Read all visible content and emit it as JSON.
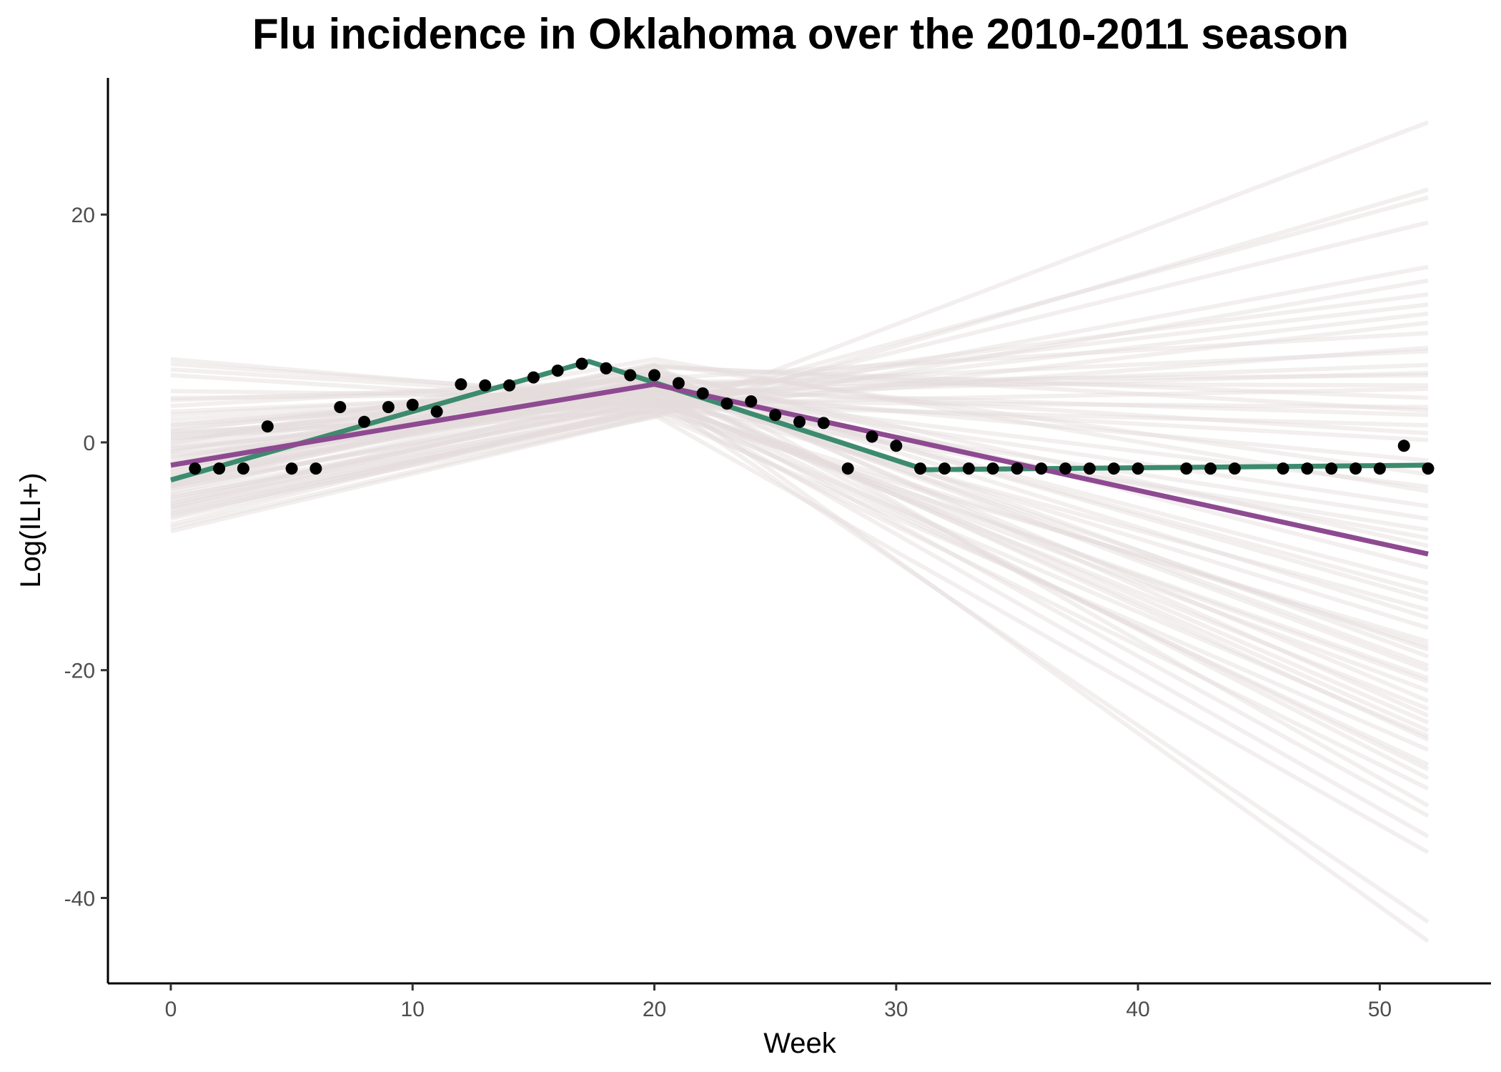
{
  "chart_data": {
    "type": "line",
    "title": "Flu incidence in Oklahoma over the 2010-2011 season",
    "xlabel": "Week",
    "ylabel": "Log(ILI+)",
    "xlim": [
      -2.6,
      54.6
    ],
    "ylim": [
      -47.5,
      32
    ],
    "x_ticks": [
      0,
      10,
      20,
      30,
      40,
      50
    ],
    "y_ticks": [
      -40,
      -20,
      0,
      20
    ],
    "grid": false,
    "legend": "none",
    "colors": {
      "observed_points": "#000000",
      "fit_green": "#3d8b6e",
      "fit_purple": "#8e4a91",
      "posterior_samples": "#e4dcdc"
    },
    "observed": {
      "x": [
        1,
        2,
        3,
        4,
        5,
        6,
        7,
        8,
        9,
        10,
        11,
        12,
        13,
        14,
        15,
        16,
        17,
        18,
        19,
        20,
        21,
        22,
        23,
        24,
        25,
        26,
        27,
        28,
        29,
        30,
        31,
        32,
        33,
        34,
        35,
        36,
        37,
        38,
        39,
        40,
        42,
        43,
        44,
        46,
        47,
        48,
        49,
        50,
        51,
        52
      ],
      "y": [
        -2.3,
        -2.3,
        -2.3,
        1.4,
        -2.3,
        -2.3,
        3.1,
        1.8,
        3.1,
        3.3,
        2.7,
        5.1,
        5.0,
        5.0,
        5.7,
        6.3,
        6.9,
        6.5,
        5.9,
        5.9,
        5.2,
        4.3,
        3.4,
        3.6,
        2.4,
        1.8,
        1.7,
        -2.3,
        0.5,
        -0.3,
        -2.3,
        -2.3,
        -2.3,
        -2.3,
        -2.3,
        -2.3,
        -2.3,
        -2.3,
        -2.3,
        -2.3,
        -2.3,
        -2.3,
        -2.3,
        -2.3,
        -2.3,
        -2.3,
        -2.3,
        -2.3,
        -0.3,
        -2.3
      ]
    },
    "series": [
      {
        "x": [
          0,
          17.3,
          31.2,
          52
        ],
        "y": [
          -3.3,
          7.1,
          -2.4,
          -2.0
        ]
      },
      {
        "x": [
          0,
          20,
          52
        ],
        "y": [
          -2.0,
          5.1,
          -9.8
        ]
      }
    ],
    "posterior_samples": [
      {
        "y": [
          3.7,
          5.3,
          5.9
        ]
      },
      {
        "y": [
          0.3,
          3.6,
          -21.8
        ]
      },
      {
        "y": [
          -0.1,
          7.3,
          -4.3
        ]
      },
      {
        "y": [
          -5.4,
          4.7,
          -25.3
        ]
      },
      {
        "y": [
          7.3,
          3.6,
          3.1
        ]
      },
      {
        "y": [
          -4.8,
          2.8,
          -17.5
        ]
      },
      {
        "y": [
          -2.1,
          4.2,
          6.1
        ]
      },
      {
        "y": [
          -7.2,
          3.3,
          -25.8
        ]
      },
      {
        "y": [
          1.2,
          4.9,
          8.0
        ]
      },
      {
        "y": [
          -3.0,
          4.6,
          2.4
        ]
      },
      {
        "y": [
          -6.3,
          2.2,
          22.2
        ]
      },
      {
        "y": [
          -1.5,
          6.8,
          -31.9
        ]
      },
      {
        "y": [
          3.2,
          5.6,
          -20.0
        ]
      },
      {
        "y": [
          -5.7,
          4.3,
          13.0
        ]
      },
      {
        "y": [
          -0.6,
          3.9,
          -23.4
        ]
      },
      {
        "y": [
          -3.5,
          5.0,
          0.8
        ]
      },
      {
        "y": [
          6.4,
          3.8,
          -6.7
        ]
      },
      {
        "y": [
          -4.1,
          3.9,
          -42.1
        ]
      },
      {
        "y": [
          0.9,
          2.7,
          10.5
        ]
      },
      {
        "y": [
          -2.6,
          5.5,
          -13.2
        ]
      },
      {
        "y": [
          -7.8,
          2.3,
          28.1
        ]
      },
      {
        "y": [
          -0.3,
          6.1,
          -18.8
        ]
      },
      {
        "y": [
          4.5,
          4.0,
          -34.6
        ]
      },
      {
        "y": [
          -3.8,
          3.4,
          4.7
        ]
      },
      {
        "y": [
          -5.1,
          3.7,
          -28.3
        ]
      },
      {
        "y": [
          2.0,
          4.4,
          -3.9
        ]
      },
      {
        "y": [
          -1.9,
          5.8,
          -15.4
        ]
      },
      {
        "y": [
          -6.7,
          2.9,
          15.4
        ]
      },
      {
        "y": [
          0.6,
          4.8,
          -24.6
        ]
      },
      {
        "y": [
          -3.2,
          6.4,
          -11.0
        ]
      },
      {
        "y": [
          5.9,
          3.3,
          1.5
        ]
      },
      {
        "y": [
          -4.4,
          4.9,
          -43.8
        ]
      },
      {
        "y": [
          -1.1,
          3.2,
          8.3
        ]
      },
      {
        "y": [
          -2.9,
          5.3,
          -29.5
        ]
      },
      {
        "y": [
          -6.0,
          3.0,
          21.5
        ]
      },
      {
        "y": [
          1.6,
          4.1,
          -8.4
        ]
      },
      {
        "y": [
          -3.6,
          5.7,
          -19.6
        ]
      },
      {
        "y": [
          -0.8,
          6.6,
          3.9
        ]
      },
      {
        "y": [
          -5.3,
          2.6,
          -27.0
        ]
      },
      {
        "y": [
          2.7,
          4.5,
          -5.6
        ]
      },
      {
        "y": [
          -2.3,
          4.7,
          -16.3
        ]
      },
      {
        "y": [
          -4.6,
          3.5,
          11.3
        ]
      },
      {
        "y": [
          0.1,
          5.9,
          -22.7
        ]
      },
      {
        "y": [
          -1.8,
          6.9,
          -2.8
        ]
      },
      {
        "y": [
          -6.5,
          3.1,
          -30.4
        ]
      },
      {
        "y": [
          3.9,
          4.3,
          6.8
        ]
      },
      {
        "y": [
          -3.4,
          5.4,
          -12.4
        ]
      },
      {
        "y": [
          -0.5,
          3.7,
          -21.0
        ]
      },
      {
        "y": [
          -5.8,
          2.5,
          14.2
        ]
      },
      {
        "y": [
          1.5,
          5.1,
          -26.1
        ]
      },
      {
        "y": [
          -2.7,
          6.2,
          -9.1
        ]
      },
      {
        "y": [
          -4.0,
          4.0,
          0.2
        ]
      },
      {
        "y": [
          6.9,
          3.9,
          -14.7
        ]
      },
      {
        "y": [
          -1.3,
          4.6,
          -32.8
        ]
      },
      {
        "y": [
          -3.9,
          5.6,
          9.6
        ]
      },
      {
        "y": [
          0.4,
          3.4,
          -17.9
        ]
      },
      {
        "y": [
          -6.2,
          2.8,
          19.3
        ]
      },
      {
        "y": [
          -2.0,
          6.3,
          -24.0
        ]
      },
      {
        "y": [
          2.4,
          4.7,
          -1.6
        ]
      },
      {
        "y": [
          -4.9,
          3.6,
          -20.7
        ]
      },
      {
        "y": [
          -0.9,
          5.2,
          5.0
        ]
      },
      {
        "y": [
          -3.1,
          4.4,
          -28.7
        ]
      },
      {
        "y": [
          -5.6,
          3.3,
          -7.7
        ]
      },
      {
        "y": [
          1.0,
          5.8,
          -13.8
        ]
      },
      {
        "y": [
          -2.4,
          6.7,
          2.8
        ]
      },
      {
        "y": [
          -7.5,
          2.4,
          -36.0
        ]
      },
      {
        "y": [
          0.7,
          4.2,
          12.1
        ]
      },
      {
        "y": [
          -3.7,
          5.0,
          -18.2
        ]
      }
    ]
  }
}
